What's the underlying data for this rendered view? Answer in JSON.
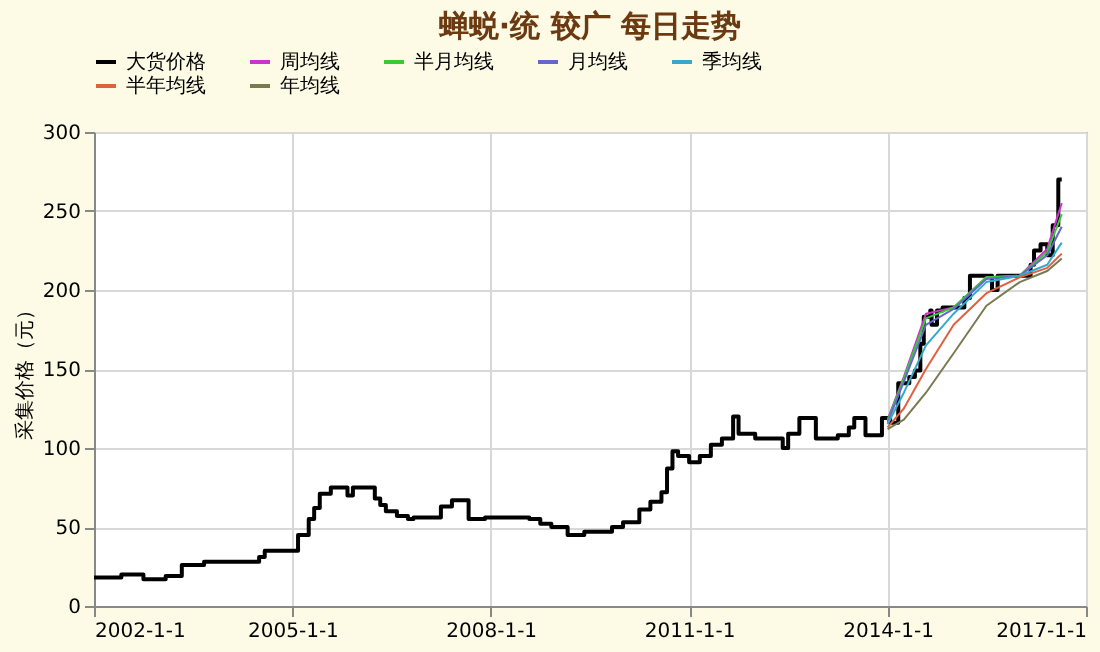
{
  "chart_data": {
    "type": "line",
    "title": "蝉蜕·统 较广 每日走势",
    "ylabel": "采集价格（元）",
    "xlim": [
      "2002-01-01",
      "2017-01-01"
    ],
    "ylim": [
      0,
      300
    ],
    "yticks": [
      0,
      50,
      100,
      150,
      200,
      250,
      300
    ],
    "xticks": [
      {
        "value": "2002-01-01",
        "label": "2002-1-1"
      },
      {
        "value": "2005-01-01",
        "label": "2005-1-1"
      },
      {
        "value": "2008-01-01",
        "label": "2008-1-1"
      },
      {
        "value": "2011-01-01",
        "label": "2011-1-1"
      },
      {
        "value": "2014-01-01",
        "label": "2014-1-1"
      },
      {
        "value": "2017-01-01",
        "label": "2017-1-1"
      }
    ],
    "grid": true,
    "legend": "top",
    "series": [
      {
        "name": "大货价格",
        "type": "step",
        "color": "#000000",
        "x": [
          "2002-01",
          "2002-06",
          "2002-10",
          "2003-02",
          "2003-05",
          "2003-09",
          "2004-07",
          "2004-08",
          "2005-02",
          "2005-04",
          "2005-05",
          "2005-06",
          "2005-08",
          "2005-11",
          "2005-12",
          "2006-04",
          "2006-05",
          "2006-06",
          "2006-08",
          "2006-10",
          "2006-11",
          "2007-01",
          "2007-04",
          "2007-06",
          "2007-09",
          "2007-12",
          "2008-08",
          "2008-10",
          "2008-12",
          "2009-03",
          "2009-06",
          "2009-11",
          "2010-01",
          "2010-04",
          "2010-06",
          "2010-08",
          "2010-09",
          "2010-10",
          "2010-11",
          "2011-01",
          "2011-03",
          "2011-05",
          "2011-07",
          "2011-09",
          "2011-10",
          "2012-01",
          "2012-06",
          "2012-07",
          "2012-09",
          "2012-12",
          "2013-04",
          "2013-06",
          "2013-07",
          "2013-09",
          "2013-12",
          "2014-01-15",
          "2014-03",
          "2014-05",
          "2014-06",
          "2014-07",
          "2014-07-20",
          "2014-08-25",
          "2014-09",
          "2014-10",
          "2014-11",
          "2015-03",
          "2015-04",
          "2015-08",
          "2015-09",
          "2016-03",
          "2016-03-20",
          "2016-04-25",
          "2016-06",
          "2016-07",
          "2016-08",
          "2016-08-20"
        ],
        "values": [
          18,
          20,
          17,
          19,
          26,
          28,
          31,
          35,
          45,
          55,
          62,
          71,
          75,
          70,
          75,
          68,
          64,
          60,
          57,
          55,
          56,
          56,
          63,
          67,
          55,
          56,
          55,
          52,
          50,
          45,
          47,
          50,
          53,
          61,
          66,
          72,
          87,
          98,
          95,
          91,
          95,
          102,
          106,
          120,
          109,
          106,
          100,
          109,
          119,
          106,
          108,
          113,
          119,
          108,
          119,
          116,
          141,
          145,
          149,
          166,
          183,
          187,
          178,
          187,
          189,
          195,
          209,
          200,
          209,
          216,
          225,
          229,
          222,
          241,
          270,
          270
        ]
      },
      {
        "name": "周均线",
        "color": "#cc33cc",
        "x": [
          "2014-01",
          "2014-04",
          "2014-08",
          "2015-01",
          "2015-07",
          "2016-01",
          "2016-06",
          "2016-08-20"
        ],
        "values": [
          118,
          145,
          185,
          189,
          208,
          209,
          226,
          255
        ]
      },
      {
        "name": "半月均线",
        "color": "#33cc33",
        "x": [
          "2014-01",
          "2014-04",
          "2014-08",
          "2015-01",
          "2015-07",
          "2016-01",
          "2016-06",
          "2016-08-20"
        ],
        "values": [
          117,
          144,
          182,
          189,
          208,
          209,
          224,
          248
        ]
      },
      {
        "name": "月均线",
        "color": "#6666cc",
        "x": [
          "2014-01",
          "2014-04",
          "2014-08",
          "2015-01",
          "2015-07",
          "2016-01",
          "2016-06",
          "2016-08-20"
        ],
        "values": [
          116,
          142,
          178,
          188,
          207,
          209,
          222,
          240
        ]
      },
      {
        "name": "季均线",
        "color": "#33aacc",
        "x": [
          "2014-01",
          "2014-04",
          "2014-08",
          "2015-01",
          "2015-07",
          "2016-01",
          "2016-06",
          "2016-08-20"
        ],
        "values": [
          115,
          135,
          165,
          185,
          205,
          209,
          216,
          230
        ]
      },
      {
        "name": "半年均线",
        "color": "#e06040",
        "x": [
          "2014-01",
          "2014-04",
          "2014-08",
          "2015-01",
          "2015-07",
          "2016-01",
          "2016-06",
          "2016-08-20"
        ],
        "values": [
          113,
          125,
          150,
          178,
          198,
          208,
          214,
          223
        ]
      },
      {
        "name": "年均线",
        "color": "#7a7a50",
        "x": [
          "2014-01",
          "2014-04",
          "2014-08",
          "2015-01",
          "2015-07",
          "2016-01",
          "2016-06",
          "2016-08-20"
        ],
        "values": [
          112,
          118,
          135,
          160,
          190,
          205,
          212,
          220
        ]
      }
    ]
  }
}
